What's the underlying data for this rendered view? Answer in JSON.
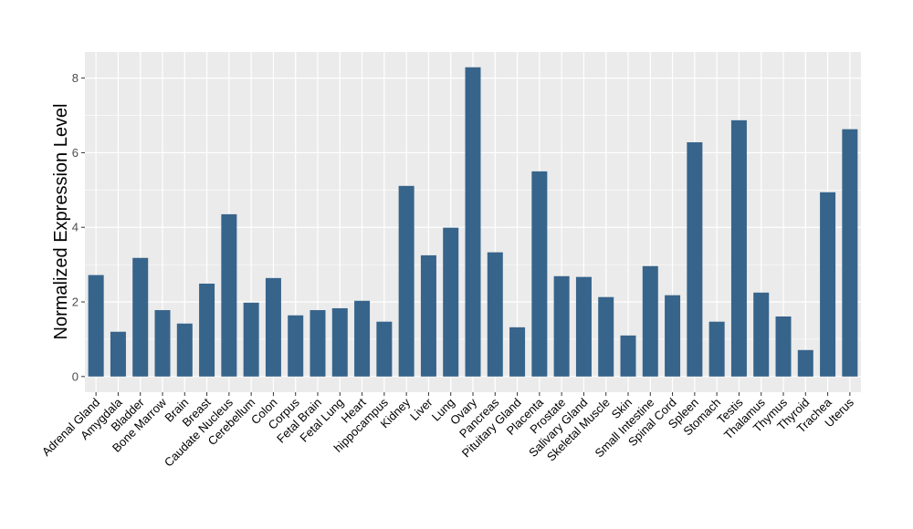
{
  "chart_data": {
    "type": "bar",
    "title": "",
    "xlabel": "",
    "ylabel": "Normalized Expression Level",
    "ylim": [
      -0.42,
      8.7
    ],
    "yticks": [
      0,
      2,
      4,
      6,
      8
    ],
    "grid": true,
    "bar_color": "#37648B",
    "panel_color": "#EBEBEB",
    "categories": [
      "Adrenal Gland",
      "Amygdala",
      "Bladder",
      "Bone Marrow",
      "Brain",
      "Breast",
      "Caudate Nucleus",
      "Cerebellum",
      "Colon",
      "Corpus",
      "Fetal Brain",
      "Fetal Lung",
      "Heart",
      "hippocampus",
      "Kidney",
      "Liver",
      "Lung",
      "Ovary",
      "Pancreas",
      "Pituitary Gland",
      "Placenta",
      "Prostate",
      "Salivary Gland",
      "Skeletal Muscle",
      "Skin",
      "Small Intestine",
      "Spinal Cord",
      "Spleen",
      "Stomach",
      "Testis",
      "Thalamus",
      "Thymus",
      "Thyroid",
      "Trachea",
      "Uterus"
    ],
    "values": [
      2.72,
      1.2,
      3.18,
      1.78,
      1.42,
      2.49,
      4.35,
      1.98,
      2.64,
      1.64,
      1.78,
      1.83,
      2.03,
      1.47,
      5.11,
      3.25,
      3.99,
      8.29,
      3.33,
      1.32,
      5.5,
      2.69,
      2.67,
      2.13,
      1.1,
      2.96,
      2.18,
      6.28,
      1.47,
      6.87,
      2.25,
      1.61,
      0.71,
      4.94,
      6.63
    ]
  }
}
